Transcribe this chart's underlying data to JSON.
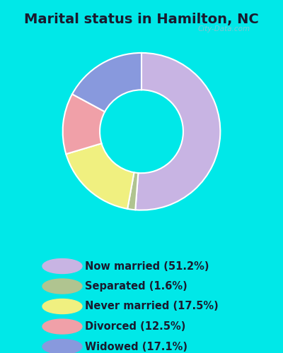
{
  "title": "Marital status in Hamilton, NC",
  "slices": [
    {
      "label": "Now married (51.2%)",
      "value": 51.2,
      "color": "#c8b4e3"
    },
    {
      "label": "Separated (1.6%)",
      "value": 1.6,
      "color": "#b0c490"
    },
    {
      "label": "Never married (17.5%)",
      "value": 17.5,
      "color": "#f0f080"
    },
    {
      "label": "Divorced (12.5%)",
      "value": 12.5,
      "color": "#f0a0a8"
    },
    {
      "label": "Widowed (17.1%)",
      "value": 17.1,
      "color": "#8899dd"
    }
  ],
  "bg_outer": "#00e8e8",
  "bg_chart": "#e0f0e8",
  "watermark": "City-Data.com",
  "title_fontsize": 14,
  "legend_fontsize": 10.5,
  "donut_width": 0.4,
  "start_angle": 90
}
